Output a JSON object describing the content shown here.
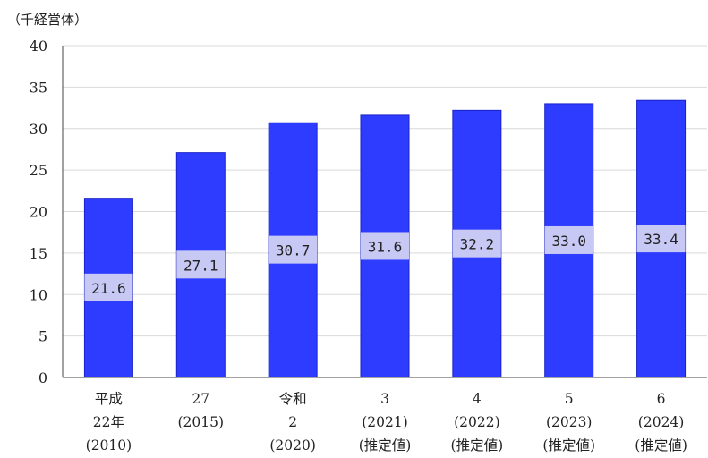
{
  "chart_data": {
    "type": "bar",
    "unit_label": "（千経営体）",
    "categories": [
      [
        "平成",
        "22年",
        "(2010)"
      ],
      [
        "27",
        "(2015)"
      ],
      [
        "令和",
        "2",
        "(2020)"
      ],
      [
        "3",
        "(2021)",
        "(推定値)"
      ],
      [
        "4",
        "(2022)",
        "(推定値)"
      ],
      [
        "5",
        "(2023)",
        "(推定値)"
      ],
      [
        "6",
        "(2024)",
        "(推定値)"
      ]
    ],
    "values": [
      21.6,
      27.1,
      30.7,
      31.6,
      32.2,
      33.0,
      33.4
    ],
    "data_labels": [
      "21.6",
      "27.1",
      "30.7",
      "31.6",
      "32.2",
      "33.0",
      "33.4"
    ],
    "ylim": [
      0,
      40
    ],
    "yticks": [
      0,
      5,
      10,
      15,
      20,
      25,
      30,
      35,
      40
    ],
    "grid": true,
    "colors": {
      "bar": "#2e3cff",
      "bar_edge": "#1a22c8",
      "label_box": "#c8c8f5",
      "grid": "#d9d9d9",
      "axis": "#444444"
    }
  }
}
